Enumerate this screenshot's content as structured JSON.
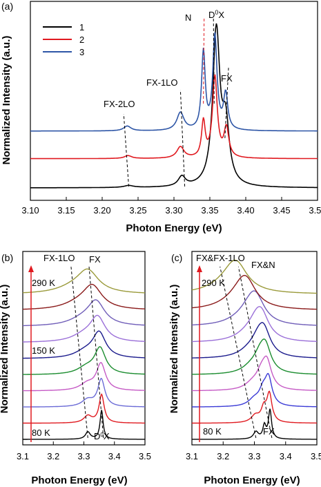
{
  "colors": {
    "s1": "#000000",
    "s2": "#e0191f",
    "s3": "#2d55a6",
    "ramp": "#e0191f"
  },
  "chart_data": [
    {
      "panel": "(a)",
      "type": "line",
      "xlabel": "Photon Energy (eV)",
      "ylabel": "Normalized Intensity (a.u.)",
      "xlim": [
        3.1,
        3.5
      ],
      "xticks": [
        "3.10",
        "3.15",
        "3.20",
        "3.25",
        "3.30",
        "3.35",
        "3.40",
        "3.45",
        "3.50"
      ],
      "legend": {
        "placement": "top-left",
        "entries": [
          "1",
          "2",
          "3"
        ]
      },
      "annotations": [
        "N",
        "D⁰X",
        "FX",
        "FX-1LO",
        "FX-2LO"
      ],
      "peaks_eV": {
        "N": 3.341,
        "D0X": 3.357,
        "FX": 3.373,
        "FX-1LO": 3.311,
        "FX-2LO": 3.236
      },
      "series": [
        {
          "name": "1",
          "offset": 0,
          "peaks": [
            [
              3.359,
              0.95,
              0.006
            ],
            [
              3.372,
              0.35,
              0.006
            ],
            [
              3.311,
              0.06,
              0.006
            ],
            [
              3.237,
              0.012,
              0.008
            ]
          ]
        },
        {
          "name": "2",
          "offset": 0.18,
          "peaks": [
            [
              3.341,
              0.22,
              0.003
            ],
            [
              3.357,
              0.5,
              0.004
            ],
            [
              3.373,
              0.18,
              0.004
            ],
            [
              3.309,
              0.07,
              0.006
            ],
            [
              3.236,
              0.018,
              0.006
            ]
          ]
        },
        {
          "name": "3",
          "offset": 0.35,
          "peaks": [
            [
              3.341,
              0.48,
              0.003
            ],
            [
              3.357,
              0.58,
              0.0035
            ],
            [
              3.372,
              0.22,
              0.0035
            ],
            [
              3.309,
              0.11,
              0.006
            ],
            [
              3.235,
              0.03,
              0.006
            ]
          ]
        }
      ]
    },
    {
      "panel": "(b)",
      "type": "line",
      "xlabel": "Photon Energy (eV)",
      "ylabel": "Normalized Intensity (a.u.)",
      "xlim": [
        3.1,
        3.5
      ],
      "xticks": [
        "3.1",
        "3.2",
        "3.3",
        "3.4",
        "3.5"
      ],
      "annotations": [
        "FX-1LO",
        "FX",
        "D⁰X"
      ],
      "temperature_labels": [
        "290 K",
        "150 K",
        "80 K"
      ],
      "series_colors": [
        "#000000",
        "#e0191f",
        "#6a6ad6",
        "#c55ac5",
        "#1a8c2e",
        "#1a1a8c",
        "#9a6fd8",
        "#6f5db8",
        "#8a1a1a",
        "#9a9a3a"
      ],
      "peak_energies": [
        3.358,
        3.358,
        3.357,
        3.356,
        3.353,
        3.35,
        3.345,
        3.34,
        3.328,
        3.313
      ]
    },
    {
      "panel": "(c)",
      "type": "line",
      "xlabel": "Photon Energy (eV)",
      "ylabel": "Normalized Intensity (a.u.)",
      "xlim": [
        3.1,
        3.5
      ],
      "xticks": [
        "3.1",
        "3.2",
        "3.3",
        "3.4",
        "3.5"
      ],
      "annotations": [
        "FX&FX-1LO",
        "FX&N",
        "FX"
      ],
      "temperature_labels": [
        "290 K",
        "80 K"
      ],
      "series_colors": [
        "#000000",
        "#e0191f",
        "#3a3ad6",
        "#c55ac5",
        "#1a8c2e",
        "#1a1a8c",
        "#9a6fd8",
        "#6f5db8",
        "#8a1a1a",
        "#9a9a3a"
      ],
      "peak_energies": [
        3.35,
        3.348,
        3.345,
        3.34,
        3.335,
        3.33,
        3.322,
        3.305,
        3.275,
        3.245
      ]
    }
  ],
  "labels": {
    "a": "(a)",
    "b": "(b)",
    "c": "(c)",
    "leg1": "1",
    "leg2": "2",
    "leg3": "3",
    "N": "N",
    "D0X": "D",
    "D0X_sup": "0",
    "D0X_end": "X",
    "FX": "FX",
    "FX1LO": "FX-1LO",
    "FX2LO": "FX-2LO",
    "b_fx1lo": "FX-1LO",
    "b_fx": "FX",
    "b_290": "290 K",
    "b_150": "150 K",
    "b_80": "80 K",
    "b_d0x": "D",
    "b_d0x_sup": "0",
    "b_d0x_end": "X",
    "c_fxfx1lo": "FX&FX-1LO",
    "c_fxn": "FX&N",
    "c_290": "290 K",
    "c_80": "80 K",
    "c_fx": "FX"
  },
  "axes": {
    "xlabel": "Photon Energy (eV)",
    "ylabel": "Normalized Intensity (a.u.)"
  }
}
